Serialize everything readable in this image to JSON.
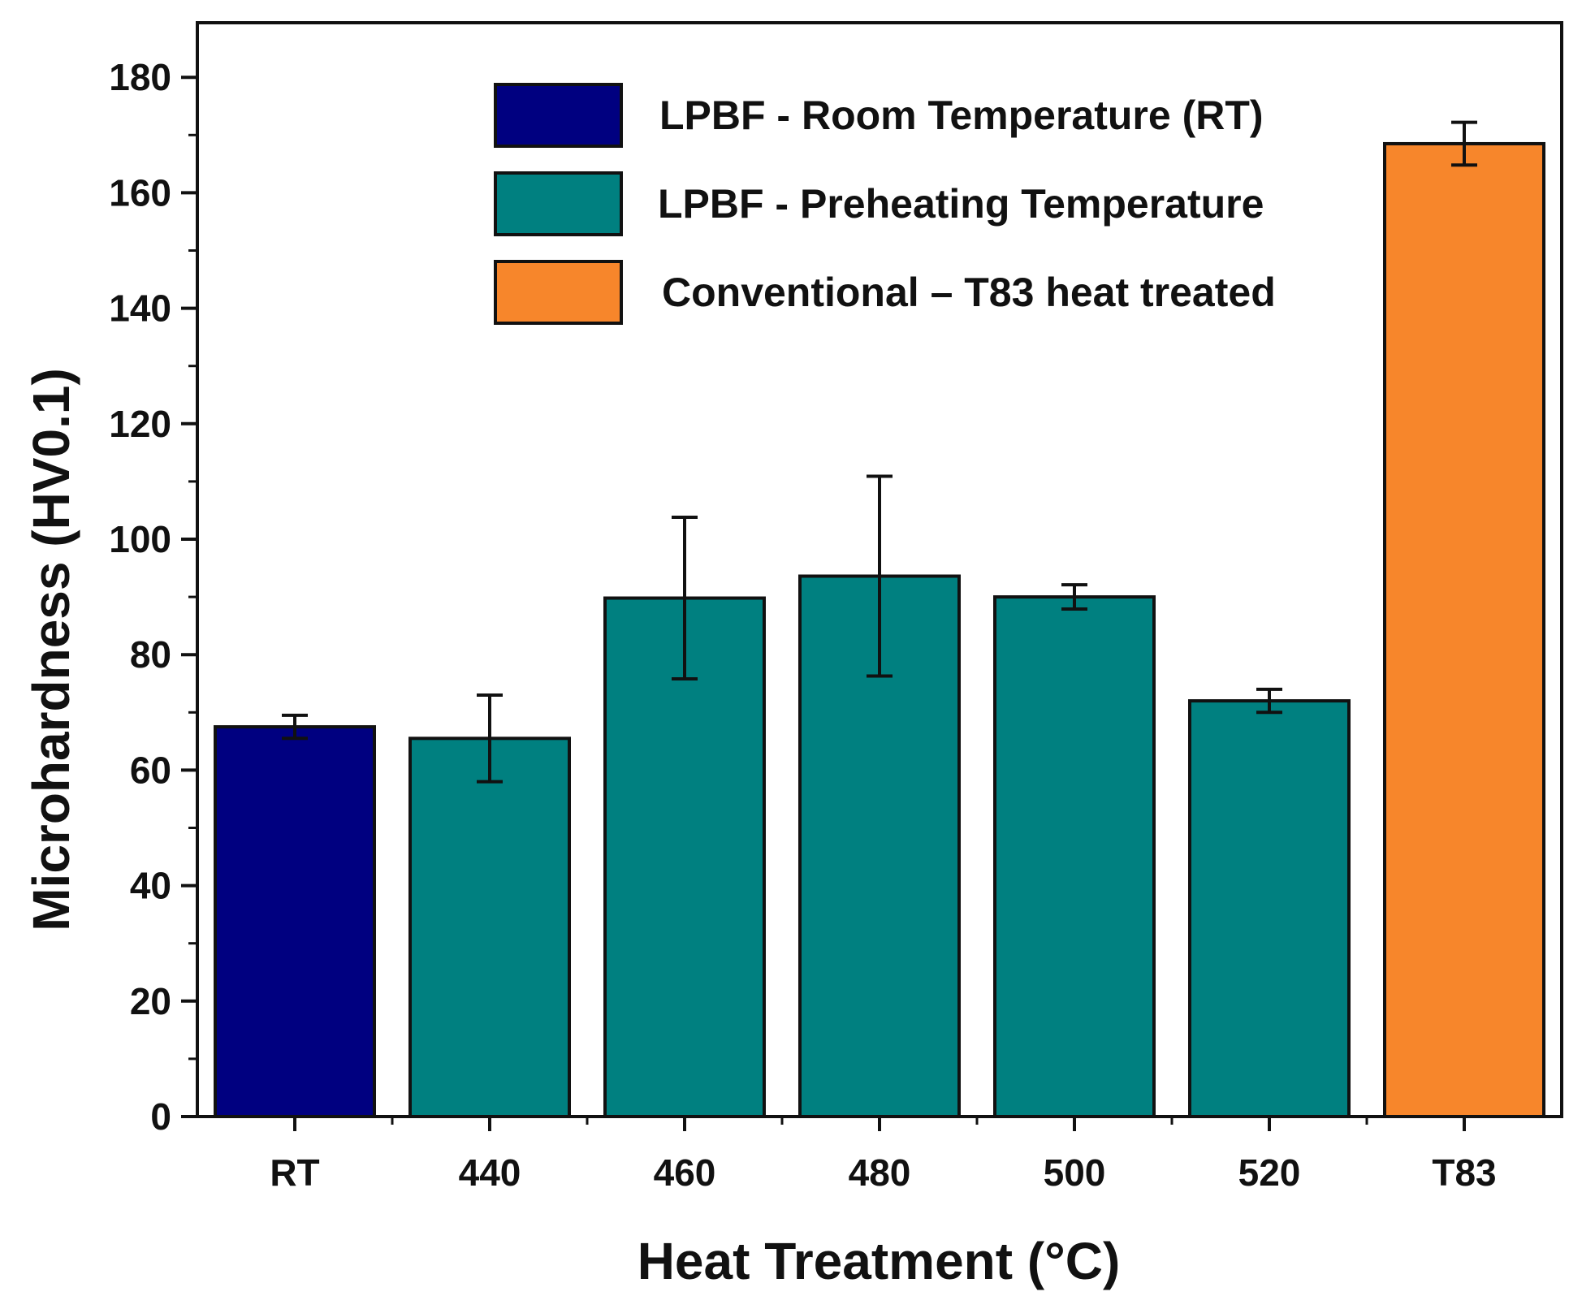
{
  "chart_data": {
    "type": "bar",
    "title": "",
    "xlabel": "Heat Treatment (°C)",
    "ylabel": "Microhardness (HV0.1)",
    "ylim": [
      0,
      188
    ],
    "yticks": [
      0,
      20,
      40,
      60,
      80,
      100,
      120,
      140,
      160,
      180
    ],
    "ytick_labels": [
      "0",
      "20",
      "40",
      "60",
      "80",
      "100",
      "120",
      "140",
      "160",
      "180"
    ],
    "categories": [
      "RT",
      "440",
      "460",
      "480",
      "500",
      "520",
      "T83"
    ],
    "values": [
      67.5,
      65.5,
      89.8,
      93.6,
      90.0,
      72.0,
      168.5
    ],
    "errors": [
      2.0,
      7.5,
      14.0,
      17.3,
      2.1,
      2.0,
      3.7
    ],
    "bar_series": [
      0,
      1,
      1,
      1,
      1,
      1,
      2
    ],
    "series": [
      {
        "name": "LPBF - Room Temperature (RT)",
        "color": "#000080"
      },
      {
        "name": "LPBF - Preheating Temperature",
        "color": "#008080"
      },
      {
        "name": "Conventional – T83 heat treated",
        "color": "#F7862B"
      }
    ],
    "legend_position": "top",
    "grid": false
  }
}
